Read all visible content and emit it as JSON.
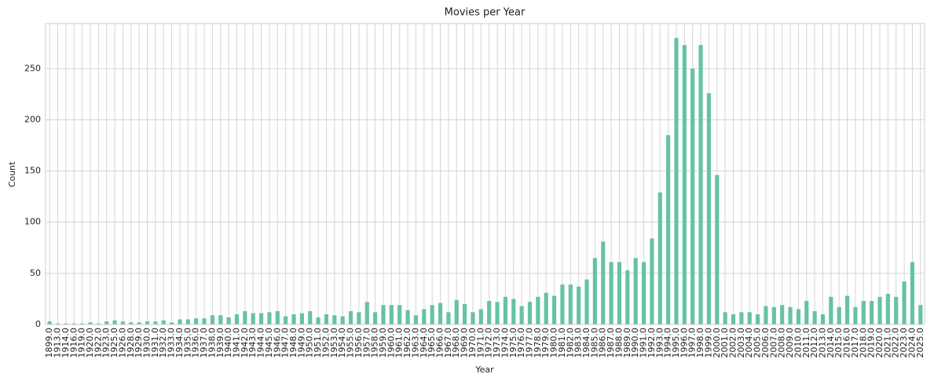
{
  "chart_data": {
    "type": "bar",
    "title": "Movies per Year",
    "x_label": "Year",
    "y_label": "Count",
    "categories": [
      "1899.0",
      "1913.0",
      "1914.0",
      "1916.0",
      "1919.0",
      "1920.0",
      "1922.0",
      "1923.0",
      "1925.0",
      "1926.0",
      "1928.0",
      "1929.0",
      "1930.0",
      "1931.0",
      "1932.0",
      "1933.0",
      "1934.0",
      "1935.0",
      "1936.0",
      "1937.0",
      "1938.0",
      "1939.0",
      "1940.0",
      "1941.0",
      "1942.0",
      "1943.0",
      "1944.0",
      "1945.0",
      "1946.0",
      "1947.0",
      "1948.0",
      "1949.0",
      "1950.0",
      "1951.0",
      "1952.0",
      "1953.0",
      "1954.0",
      "1955.0",
      "1956.0",
      "1957.0",
      "1958.0",
      "1959.0",
      "1960.0",
      "1961.0",
      "1962.0",
      "1963.0",
      "1964.0",
      "1965.0",
      "1966.0",
      "1967.0",
      "1968.0",
      "1969.0",
      "1970.0",
      "1971.0",
      "1972.0",
      "1973.0",
      "1974.0",
      "1975.0",
      "1976.0",
      "1977.0",
      "1978.0",
      "1979.0",
      "1980.0",
      "1981.0",
      "1982.0",
      "1983.0",
      "1984.0",
      "1985.0",
      "1986.0",
      "1987.0",
      "1988.0",
      "1989.0",
      "1990.0",
      "1991.0",
      "1992.0",
      "1993.0",
      "1994.0",
      "1995.0",
      "1996.0",
      "1997.0",
      "1998.0",
      "1999.0",
      "2000.0",
      "2001.0",
      "2002.0",
      "2003.0",
      "2004.0",
      "2005.0",
      "2006.0",
      "2007.0",
      "2008.0",
      "2009.0",
      "2010.0",
      "2011.0",
      "2012.0",
      "2013.0",
      "2014.0",
      "2015.0",
      "2016.0",
      "2017.0",
      "2018.0",
      "2019.0",
      "2020.0",
      "2021.0",
      "2022.0",
      "2023.0",
      "2024.0",
      "2025.0"
    ],
    "values": [
      3,
      1,
      1,
      1,
      1,
      2,
      1,
      3,
      4,
      3,
      2,
      2,
      3,
      3,
      4,
      2,
      5,
      5,
      6,
      6,
      9,
      9,
      7,
      10,
      13,
      11,
      11,
      12,
      13,
      8,
      10,
      11,
      13,
      7,
      10,
      9,
      8,
      13,
      12,
      22,
      12,
      19,
      19,
      19,
      14,
      9,
      15,
      19,
      21,
      12,
      24,
      20,
      12,
      15,
      23,
      22,
      27,
      25,
      18,
      22,
      27,
      31,
      28,
      39,
      39,
      37,
      44,
      65,
      81,
      61,
      61,
      53,
      65,
      61,
      84,
      129,
      185,
      280,
      273,
      250,
      273,
      226,
      146,
      12,
      10,
      12,
      12,
      10,
      18,
      17,
      19,
      17,
      15,
      23,
      13,
      10,
      27,
      17,
      28,
      17,
      23,
      23,
      27,
      30,
      27,
      42,
      61,
      19
    ],
    "color": "#66c2a5",
    "ylim": [
      0,
      294
    ],
    "yticks": [
      0,
      50,
      100,
      150,
      200,
      250
    ],
    "grid": true
  }
}
